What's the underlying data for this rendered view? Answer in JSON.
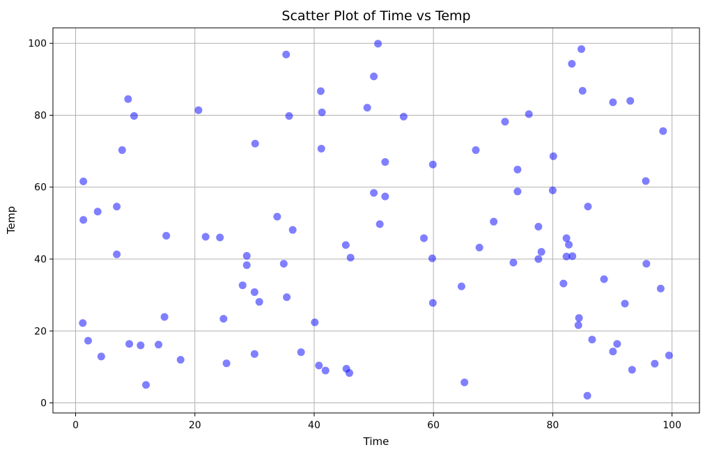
{
  "chart_data": {
    "type": "scatter",
    "title": "Scatter Plot of Time vs Temp",
    "xlabel": "Time",
    "ylabel": "Temp",
    "xlim": [
      -3.8,
      104.6
    ],
    "ylim": [
      -2.8,
      104.3
    ],
    "xticks": [
      0,
      20,
      40,
      60,
      80,
      100
    ],
    "yticks": [
      0,
      20,
      40,
      60,
      80,
      100
    ],
    "grid": true,
    "marker_color": "#0000ff",
    "marker_alpha": 0.5,
    "points": [
      {
        "x": 1.3,
        "y": 61.6
      },
      {
        "x": 1.3,
        "y": 50.9
      },
      {
        "x": 1.2,
        "y": 22.2
      },
      {
        "x": 2.1,
        "y": 17.3
      },
      {
        "x": 3.7,
        "y": 53.2
      },
      {
        "x": 4.3,
        "y": 12.9
      },
      {
        "x": 6.9,
        "y": 54.6
      },
      {
        "x": 6.9,
        "y": 41.3
      },
      {
        "x": 7.8,
        "y": 70.3
      },
      {
        "x": 8.8,
        "y": 84.5
      },
      {
        "x": 9.0,
        "y": 16.4
      },
      {
        "x": 9.8,
        "y": 79.8
      },
      {
        "x": 10.9,
        "y": 16.0
      },
      {
        "x": 11.8,
        "y": 5.0
      },
      {
        "x": 13.9,
        "y": 16.2
      },
      {
        "x": 14.9,
        "y": 23.9
      },
      {
        "x": 15.2,
        "y": 46.5
      },
      {
        "x": 17.6,
        "y": 12.0
      },
      {
        "x": 20.6,
        "y": 81.4
      },
      {
        "x": 21.8,
        "y": 46.2
      },
      {
        "x": 24.2,
        "y": 46.0
      },
      {
        "x": 24.8,
        "y": 23.4
      },
      {
        "x": 25.3,
        "y": 11.0
      },
      {
        "x": 28.0,
        "y": 32.7
      },
      {
        "x": 28.7,
        "y": 40.9
      },
      {
        "x": 28.7,
        "y": 38.3
      },
      {
        "x": 30.1,
        "y": 72.1
      },
      {
        "x": 30.0,
        "y": 30.8
      },
      {
        "x": 30.8,
        "y": 28.1
      },
      {
        "x": 30.0,
        "y": 13.6
      },
      {
        "x": 33.8,
        "y": 51.8
      },
      {
        "x": 34.9,
        "y": 38.7
      },
      {
        "x": 35.3,
        "y": 96.9
      },
      {
        "x": 35.8,
        "y": 79.8
      },
      {
        "x": 35.4,
        "y": 29.4
      },
      {
        "x": 36.4,
        "y": 48.1
      },
      {
        "x": 37.8,
        "y": 14.1
      },
      {
        "x": 40.1,
        "y": 22.4
      },
      {
        "x": 40.8,
        "y": 10.4
      },
      {
        "x": 41.1,
        "y": 86.7
      },
      {
        "x": 41.3,
        "y": 80.8
      },
      {
        "x": 41.2,
        "y": 70.7
      },
      {
        "x": 41.9,
        "y": 9.0
      },
      {
        "x": 45.3,
        "y": 43.9
      },
      {
        "x": 45.4,
        "y": 9.5
      },
      {
        "x": 46.1,
        "y": 40.4
      },
      {
        "x": 45.9,
        "y": 8.3
      },
      {
        "x": 48.9,
        "y": 82.1
      },
      {
        "x": 50.0,
        "y": 90.8
      },
      {
        "x": 50.7,
        "y": 99.9
      },
      {
        "x": 50.0,
        "y": 58.4
      },
      {
        "x": 51.0,
        "y": 49.7
      },
      {
        "x": 51.9,
        "y": 67.0
      },
      {
        "x": 51.9,
        "y": 57.4
      },
      {
        "x": 55.0,
        "y": 79.6
      },
      {
        "x": 58.4,
        "y": 45.8
      },
      {
        "x": 59.9,
        "y": 66.3
      },
      {
        "x": 59.8,
        "y": 40.2
      },
      {
        "x": 59.9,
        "y": 27.8
      },
      {
        "x": 64.7,
        "y": 32.4
      },
      {
        "x": 65.2,
        "y": 5.7
      },
      {
        "x": 67.1,
        "y": 70.3
      },
      {
        "x": 67.7,
        "y": 43.2
      },
      {
        "x": 70.1,
        "y": 50.4
      },
      {
        "x": 72.0,
        "y": 78.2
      },
      {
        "x": 73.4,
        "y": 39.0
      },
      {
        "x": 74.1,
        "y": 64.9
      },
      {
        "x": 74.1,
        "y": 58.8
      },
      {
        "x": 76.0,
        "y": 80.3
      },
      {
        "x": 77.6,
        "y": 49.0
      },
      {
        "x": 77.6,
        "y": 40.0
      },
      {
        "x": 78.1,
        "y": 42.0
      },
      {
        "x": 80.1,
        "y": 68.6
      },
      {
        "x": 80.0,
        "y": 59.1
      },
      {
        "x": 81.8,
        "y": 33.2
      },
      {
        "x": 82.3,
        "y": 45.8
      },
      {
        "x": 82.7,
        "y": 44.0
      },
      {
        "x": 82.3,
        "y": 40.7
      },
      {
        "x": 83.3,
        "y": 40.8
      },
      {
        "x": 83.2,
        "y": 94.3
      },
      {
        "x": 84.8,
        "y": 98.4
      },
      {
        "x": 85.0,
        "y": 86.8
      },
      {
        "x": 84.4,
        "y": 23.6
      },
      {
        "x": 84.3,
        "y": 21.6
      },
      {
        "x": 85.9,
        "y": 54.6
      },
      {
        "x": 86.6,
        "y": 17.6
      },
      {
        "x": 85.8,
        "y": 2.0
      },
      {
        "x": 88.6,
        "y": 34.4
      },
      {
        "x": 90.1,
        "y": 83.6
      },
      {
        "x": 90.1,
        "y": 14.3
      },
      {
        "x": 90.8,
        "y": 16.4
      },
      {
        "x": 92.1,
        "y": 27.6
      },
      {
        "x": 93.0,
        "y": 84.0
      },
      {
        "x": 93.3,
        "y": 9.2
      },
      {
        "x": 95.6,
        "y": 61.7
      },
      {
        "x": 95.7,
        "y": 38.7
      },
      {
        "x": 97.1,
        "y": 10.9
      },
      {
        "x": 98.1,
        "y": 31.8
      },
      {
        "x": 98.5,
        "y": 75.6
      },
      {
        "x": 99.5,
        "y": 13.2
      }
    ]
  }
}
